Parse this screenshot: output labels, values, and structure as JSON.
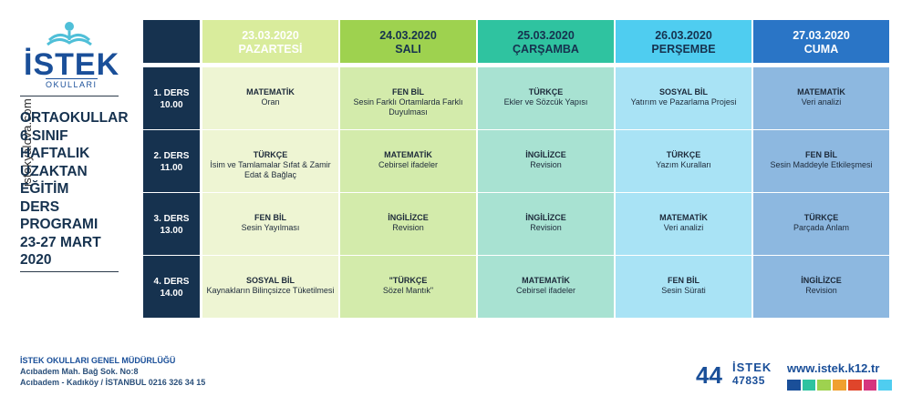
{
  "watermark": "istekyalova.com",
  "logo": {
    "brand": "İSTEK",
    "sub": "OKULLARI"
  },
  "title_lines": [
    "ORTAOKULLAR",
    "6.SINIF",
    "HAFTALIK",
    "UZAKTAN",
    "EĞİTİM",
    "DERS",
    "PROGRAMI",
    "23-27 MART",
    "2020"
  ],
  "days": [
    {
      "date": "23.03.2020",
      "name": "PAZARTESİ",
      "color": "#d9ec9c",
      "text_color": "#ffffff"
    },
    {
      "date": "24.03.2020",
      "name": "SALI",
      "color": "#9ed24f",
      "text_color": "#16324f"
    },
    {
      "date": "25.03.2020",
      "name": "ÇARŞAMBA",
      "color": "#2fc3a0",
      "text_color": "#16324f"
    },
    {
      "date": "26.03.2020",
      "name": "PERŞEMBE",
      "color": "#4fcdf0",
      "text_color": "#16324f"
    },
    {
      "date": "27.03.2020",
      "name": "CUMA",
      "color": "#2a75c6",
      "text_color": "#ffffff"
    }
  ],
  "cell_colors": [
    "#eef5d3",
    "#d3ebab",
    "#a8e2d2",
    "#a9e3f5",
    "#8db8e0"
  ],
  "rows": [
    {
      "label": "1. DERS",
      "time": "10.00",
      "cells": [
        {
          "subj": "MATEMATİK",
          "topic": "Oran"
        },
        {
          "subj": "FEN BİL",
          "topic": "Sesin Farklı Ortamlarda Farklı Duyulması"
        },
        {
          "subj": "TÜRKÇE",
          "topic": "Ekler ve Sözcük Yapısı"
        },
        {
          "subj": "SOSYAL BİL",
          "topic": "Yatırım ve Pazarlama Projesi"
        },
        {
          "subj": "MATEMATİK",
          "topic": "Veri analizi"
        }
      ]
    },
    {
      "label": "2. DERS",
      "time": "11.00",
      "cells": [
        {
          "subj": "TÜRKÇE",
          "topic": "İsim ve Tamlamalar Sıfat & Zamir Edat & Bağlaç"
        },
        {
          "subj": "MATEMATİK",
          "topic": "Cebirsel ifadeler"
        },
        {
          "subj": "İNGİLİZCE",
          "topic": "Revision"
        },
        {
          "subj": "TÜRKÇE",
          "topic": "Yazım Kuralları"
        },
        {
          "subj": "FEN BİL",
          "topic": "Sesin Maddeyle Etkileşmesi"
        }
      ]
    },
    {
      "label": "3. DERS",
      "time": "13.00",
      "cells": [
        {
          "subj": "FEN BİL",
          "topic": "Sesin Yayılması"
        },
        {
          "subj": "İNGİLİZCE",
          "topic": "Revision"
        },
        {
          "subj": "İNGİLİZCE",
          "topic": "Revision"
        },
        {
          "subj": "MATEMATİK",
          "topic": "Veri analizi"
        },
        {
          "subj": "TÜRKÇE",
          "topic": "Parçada Anlam"
        }
      ]
    },
    {
      "label": "4. DERS",
      "time": "14.00",
      "cells": [
        {
          "subj": "SOSYAL BİL",
          "topic": "Kaynakların Bilinçsizce Tüketilmesi"
        },
        {
          "subj": "\"TÜRKÇE",
          "topic": "Sözel Mantık\""
        },
        {
          "subj": "MATEMATİK",
          "topic": "Cebirsel ifadeler"
        },
        {
          "subj": "FEN BİL",
          "topic": "Sesin Sürati"
        },
        {
          "subj": "İNGİLİZCE",
          "topic": "Revision"
        }
      ]
    }
  ],
  "footer": {
    "org": "İSTEK OKULLARI GENEL MÜDÜRLÜĞÜ",
    "addr1": "Acıbadem Mah. Bağ Sok. No:8",
    "addr2": "Acıbadem - Kadıköy / İSTANBUL 0216 326 34 15",
    "phone_prefix": "44",
    "phone_brand": "İSTEK",
    "phone_number": "47835",
    "website": "www.istek.k12.tr",
    "bar_colors": [
      "#1a4f99",
      "#2fc3a0",
      "#9ed24f",
      "#f0a030",
      "#e0452b",
      "#d6357f",
      "#4fcdf0"
    ]
  }
}
